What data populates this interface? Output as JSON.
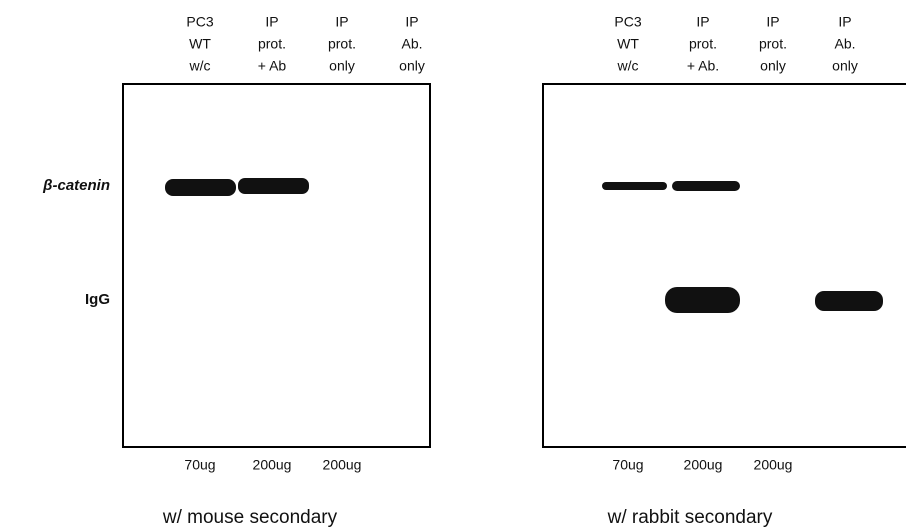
{
  "row_labels": [
    "β-catenin",
    "IgG"
  ],
  "panels": [
    {
      "lanes": [
        [
          "PC3",
          "WT",
          "w/c"
        ],
        [
          "IP",
          "prot.",
          "+ Ab"
        ],
        [
          "IP",
          "prot.",
          "only"
        ],
        [
          "IP",
          "Ab.",
          "only"
        ]
      ],
      "amounts": [
        "70ug",
        "200ug",
        "200ug"
      ],
      "caption": "w/ mouse secondary"
    },
    {
      "lanes": [
        [
          "PC3",
          "WT",
          "w/c"
        ],
        [
          "IP",
          "prot.",
          "+ Ab."
        ],
        [
          "IP",
          "prot.",
          "only"
        ],
        [
          "IP",
          "Ab.",
          "only"
        ]
      ],
      "amounts": [
        "70ug",
        "200ug",
        "200ug"
      ],
      "caption": "w/ rabbit secondary"
    }
  ]
}
